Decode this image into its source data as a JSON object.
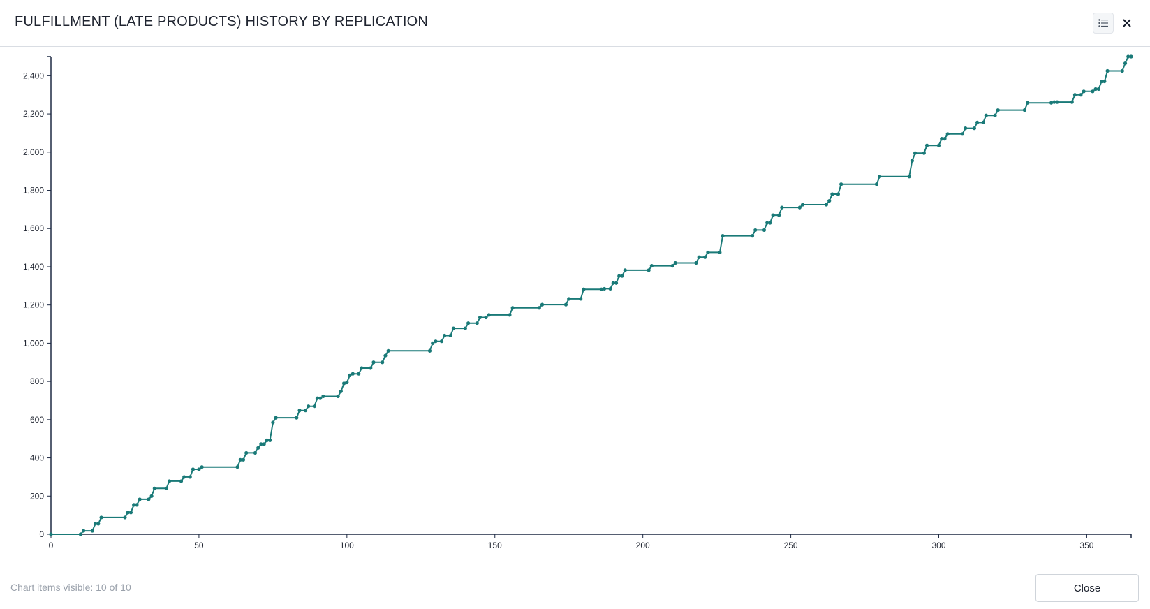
{
  "header": {
    "title": "FULFILLMENT (LATE PRODUCTS) HISTORY BY REPLICATION",
    "legend_icon": "list-icon",
    "close_icon": "close-icon"
  },
  "footer": {
    "status_text": "Chart items visible: 10 of 10",
    "close_label": "Close"
  },
  "colors": {
    "series": "#1a7a78",
    "axis": "#1e2a44"
  },
  "chart_data": {
    "type": "line",
    "step": true,
    "markers": true,
    "title": "",
    "xlabel": "",
    "ylabel": "",
    "xlim": [
      0,
      365
    ],
    "ylim": [
      0,
      2500
    ],
    "x_ticks": [
      0,
      50,
      100,
      150,
      200,
      250,
      300,
      350
    ],
    "y_ticks": [
      0,
      200,
      400,
      600,
      800,
      1000,
      1200,
      1400,
      1600,
      1800,
      2000,
      2200,
      2400
    ],
    "grid": false,
    "legend": "none",
    "series": [
      {
        "points": [
          [
            0,
            0
          ],
          [
            10,
            0
          ],
          [
            11,
            18
          ],
          [
            14,
            18
          ],
          [
            15,
            55
          ],
          [
            16,
            55
          ],
          [
            17,
            88
          ],
          [
            25,
            88
          ],
          [
            26,
            114
          ],
          [
            27,
            114
          ],
          [
            28,
            154
          ],
          [
            29,
            154
          ],
          [
            30,
            183
          ],
          [
            33,
            183
          ],
          [
            34,
            200
          ],
          [
            35,
            240
          ],
          [
            39,
            240
          ],
          [
            40,
            278
          ],
          [
            44,
            278
          ],
          [
            45,
            300
          ],
          [
            47,
            300
          ],
          [
            48,
            340
          ],
          [
            50,
            340
          ],
          [
            51,
            352
          ],
          [
            63,
            352
          ],
          [
            64,
            390
          ],
          [
            65,
            390
          ],
          [
            66,
            426
          ],
          [
            69,
            426
          ],
          [
            70,
            452
          ],
          [
            71,
            472
          ],
          [
            72,
            472
          ],
          [
            73,
            492
          ],
          [
            74,
            492
          ],
          [
            75,
            585
          ],
          [
            76,
            610
          ],
          [
            83,
            610
          ],
          [
            84,
            648
          ],
          [
            86,
            648
          ],
          [
            87,
            670
          ],
          [
            89,
            670
          ],
          [
            90,
            712
          ],
          [
            91,
            712
          ],
          [
            92,
            722
          ],
          [
            97,
            722
          ],
          [
            98,
            748
          ],
          [
            99,
            790
          ],
          [
            100,
            795
          ],
          [
            101,
            832
          ],
          [
            102,
            840
          ],
          [
            104,
            840
          ],
          [
            105,
            870
          ],
          [
            108,
            870
          ],
          [
            109,
            900
          ],
          [
            112,
            900
          ],
          [
            113,
            935
          ],
          [
            114,
            960
          ],
          [
            128,
            960
          ],
          [
            129,
            1000
          ],
          [
            130,
            1010
          ],
          [
            132,
            1010
          ],
          [
            133,
            1040
          ],
          [
            135,
            1040
          ],
          [
            136,
            1078
          ],
          [
            140,
            1078
          ],
          [
            141,
            1105
          ],
          [
            144,
            1105
          ],
          [
            145,
            1135
          ],
          [
            147,
            1135
          ],
          [
            148,
            1148
          ],
          [
            155,
            1148
          ],
          [
            156,
            1185
          ],
          [
            165,
            1185
          ],
          [
            166,
            1202
          ],
          [
            174,
            1202
          ],
          [
            175,
            1232
          ],
          [
            179,
            1232
          ],
          [
            180,
            1282
          ],
          [
            186,
            1282
          ],
          [
            187,
            1285
          ],
          [
            189,
            1285
          ],
          [
            190,
            1315
          ],
          [
            191,
            1315
          ],
          [
            192,
            1352
          ],
          [
            193,
            1352
          ],
          [
            194,
            1382
          ],
          [
            202,
            1382
          ],
          [
            203,
            1405
          ],
          [
            210,
            1405
          ],
          [
            211,
            1420
          ],
          [
            218,
            1420
          ],
          [
            219,
            1450
          ],
          [
            221,
            1450
          ],
          [
            222,
            1475
          ],
          [
            226,
            1475
          ],
          [
            227,
            1562
          ],
          [
            237,
            1562
          ],
          [
            238,
            1592
          ],
          [
            241,
            1592
          ],
          [
            242,
            1630
          ],
          [
            243,
            1630
          ],
          [
            244,
            1670
          ],
          [
            246,
            1670
          ],
          [
            247,
            1710
          ],
          [
            253,
            1710
          ],
          [
            254,
            1725
          ],
          [
            262,
            1725
          ],
          [
            263,
            1745
          ],
          [
            264,
            1780
          ],
          [
            266,
            1780
          ],
          [
            267,
            1832
          ],
          [
            279,
            1832
          ],
          [
            280,
            1872
          ],
          [
            290,
            1872
          ],
          [
            291,
            1955
          ],
          [
            292,
            1995
          ],
          [
            295,
            1995
          ],
          [
            296,
            2035
          ],
          [
            300,
            2035
          ],
          [
            301,
            2070
          ],
          [
            302,
            2070
          ],
          [
            303,
            2095
          ],
          [
            308,
            2095
          ],
          [
            309,
            2125
          ],
          [
            312,
            2125
          ],
          [
            313,
            2155
          ],
          [
            315,
            2155
          ],
          [
            316,
            2192
          ],
          [
            319,
            2192
          ],
          [
            320,
            2220
          ],
          [
            329,
            2220
          ],
          [
            330,
            2258
          ],
          [
            338,
            2258
          ],
          [
            339,
            2262
          ],
          [
            340,
            2262
          ],
          [
            345,
            2262
          ],
          [
            346,
            2300
          ],
          [
            348,
            2300
          ],
          [
            349,
            2318
          ],
          [
            352,
            2318
          ],
          [
            353,
            2330
          ],
          [
            354,
            2330
          ],
          [
            355,
            2370
          ],
          [
            356,
            2370
          ],
          [
            357,
            2425
          ],
          [
            362,
            2425
          ],
          [
            363,
            2465
          ],
          [
            364,
            2500
          ],
          [
            365,
            2500
          ]
        ]
      }
    ]
  }
}
